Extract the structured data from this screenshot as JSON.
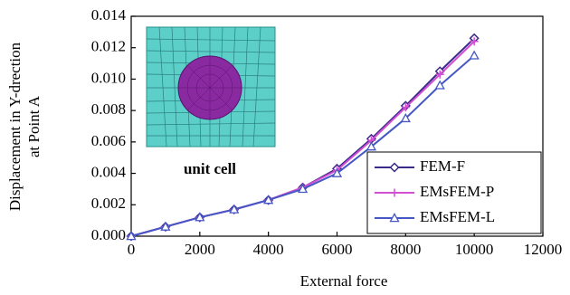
{
  "chart_data": {
    "type": "line",
    "xlabel": "External force",
    "ylabel": [
      "Displacement in Y-drection",
      "at Point A"
    ],
    "annotation": "unit cell",
    "x": [
      0,
      1000,
      2000,
      3000,
      4000,
      5000,
      6000,
      7000,
      8000,
      9000,
      10000
    ],
    "series": [
      {
        "name": "FEM-F",
        "color": "#3b2a8a",
        "marker": "diamond",
        "values": [
          0,
          0.0006,
          0.0012,
          0.0017,
          0.0023,
          0.0031,
          0.0043,
          0.0062,
          0.0083,
          0.0105,
          0.0126
        ]
      },
      {
        "name": "EMsFEM-P",
        "color": "#d24fd2",
        "marker": "plus",
        "values": [
          0,
          0.0006,
          0.0012,
          0.0017,
          0.0023,
          0.0031,
          0.0042,
          0.0061,
          0.0082,
          0.0103,
          0.0124
        ]
      },
      {
        "name": "EMsFEM-L",
        "color": "#4557c4",
        "marker": "triangle",
        "values": [
          0,
          0.0006,
          0.0012,
          0.0017,
          0.0023,
          0.003,
          0.004,
          0.0057,
          0.0075,
          0.0096,
          0.0115
        ]
      }
    ],
    "xlim": [
      0,
      12000
    ],
    "xticks": [
      0,
      2000,
      4000,
      6000,
      8000,
      10000,
      12000
    ],
    "ylim": [
      0,
      0.014
    ],
    "yticks": [
      {
        "value": 0,
        "label": "0.000"
      },
      {
        "value": 0.002,
        "label": "0.002"
      },
      {
        "value": 0.004,
        "label": "0.004"
      },
      {
        "value": 0.006,
        "label": "0.006"
      },
      {
        "value": 0.008,
        "label": "0.008"
      },
      {
        "value": 0.01,
        "label": "0.010"
      },
      {
        "value": 0.012,
        "label": "0.012"
      },
      {
        "value": 0.014,
        "label": "0.014"
      }
    ],
    "grid": false,
    "legend": "lower-right"
  }
}
